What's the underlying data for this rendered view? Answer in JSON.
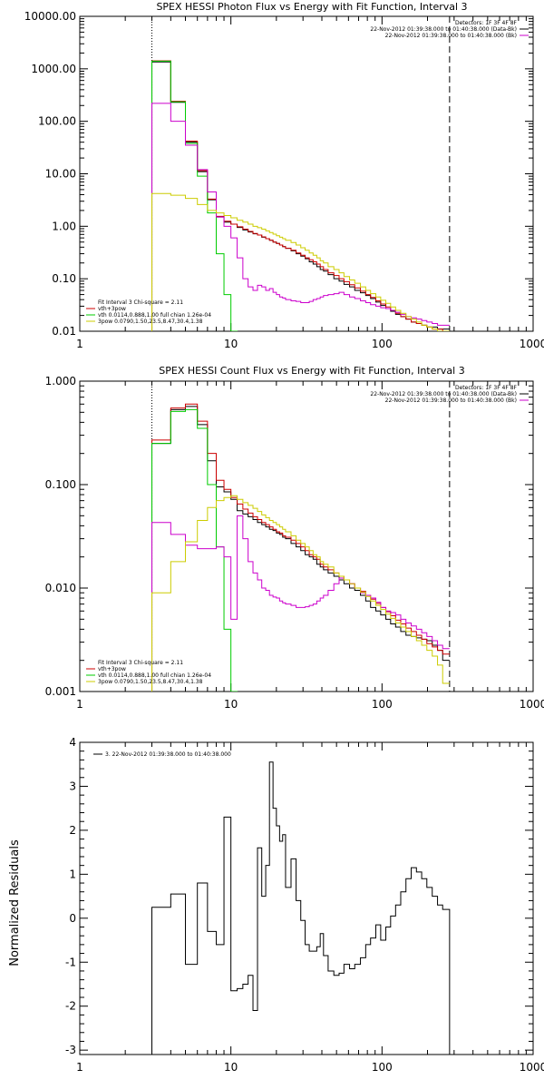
{
  "chart_data": [
    {
      "type": "line",
      "title": "SPEX HESSI Photon Flux vs Energy with Fit Function, Interval 3",
      "xlabel": "",
      "ylabel": "",
      "x_scale": "log",
      "y_scale": "log",
      "xlim": [
        1,
        1000
      ],
      "ylim": [
        0.01,
        10000
      ],
      "x_ticks": [
        "1",
        "10",
        "100",
        "1000"
      ],
      "y_ticks": [
        "10000.00",
        "1000.00",
        "100.00",
        "10.00",
        "1.00",
        "0.10",
        "0.01"
      ],
      "vlines": [
        {
          "x": 3.0,
          "style": "dotted",
          "color": "#000000"
        },
        {
          "x": 280,
          "style": "dashed",
          "color": "#000000"
        }
      ],
      "legend_top_right": [
        "Detectors: 1F 3F 4F 8F",
        "22-Nov-2012 01:39:38.000 to 01:40:38.000 (Data-Bk)",
        "22-Nov-2012 01:39:38.000 to 01:40:38.000 (Bk)"
      ],
      "legend_top_right_colors": [
        "",
        "#000000",
        "#cc00cc"
      ],
      "legend_bottom_left": [
        "Fit Interval 3   Chi-square = 2.11",
        "vth+3pow",
        "vth 0.0114,0.888,1.00  full chian 1.26e-04",
        "3pow 0.0790,1.50,23.5,8.47,30.4,1.38"
      ],
      "legend_bottom_left_colors": [
        "",
        "#cc0000",
        "#00cc00",
        "#cccc00"
      ],
      "edges": [
        3.0,
        4.0,
        5.0,
        6.0,
        7.0,
        8.0,
        9.0,
        10.0,
        11.0,
        12.0,
        13.0,
        14.0,
        15.0,
        16.0,
        17.0,
        18.0,
        19.0,
        20.0,
        21.0,
        22.0,
        23.0,
        25.0,
        27.0,
        29.0,
        31.0,
        33.0,
        35.0,
        37.0,
        39.0,
        41.0,
        44.0,
        48.0,
        52.0,
        56.0,
        61.0,
        66.0,
        72.0,
        78.0,
        84.0,
        91.0,
        98.0,
        106.0,
        114.0,
        123.0,
        133.0,
        144.0,
        156.0,
        169.0,
        183.0,
        198.0,
        215.0,
        233.0,
        252.0,
        280.0
      ],
      "series": [
        {
          "color": "#000000",
          "values": [
            1350,
            230,
            40,
            11,
            3.2,
            1.5,
            1.2,
            1.1,
            0.95,
            0.85,
            0.78,
            0.72,
            0.68,
            0.62,
            0.58,
            0.54,
            0.5,
            0.47,
            0.44,
            0.41,
            0.38,
            0.34,
            0.3,
            0.27,
            0.24,
            0.21,
            0.19,
            0.17,
            0.15,
            0.14,
            0.12,
            0.1,
            0.09,
            0.078,
            0.07,
            0.06,
            0.054,
            0.048,
            0.042,
            0.036,
            0.031,
            0.027,
            0.024,
            0.021,
            0.019,
            0.017,
            0.015,
            0.014,
            0.013,
            0.012,
            0.012,
            0.011,
            0.011
          ]
        },
        {
          "color": "#cc0000",
          "values": [
            1420,
            240,
            42,
            11.5,
            3.3,
            1.55,
            1.25,
            1.1,
            0.98,
            0.88,
            0.8,
            0.73,
            0.68,
            0.63,
            0.58,
            0.54,
            0.5,
            0.47,
            0.44,
            0.41,
            0.38,
            0.35,
            0.31,
            0.28,
            0.25,
            0.23,
            0.21,
            0.19,
            0.17,
            0.15,
            0.13,
            0.115,
            0.1,
            0.088,
            0.077,
            0.067,
            0.058,
            0.05,
            0.044,
            0.038,
            0.033,
            0.029,
            0.025,
            0.022,
            0.019,
            0.017,
            0.015,
            0.014,
            0.013,
            0.012,
            0.011,
            0.011,
            0.01
          ]
        },
        {
          "color": "#00cc00",
          "values": [
            1400,
            235,
            38,
            9,
            1.8,
            0.3,
            0.05,
            0.01
          ]
        },
        {
          "color": "#cc00cc",
          "values": [
            220,
            100,
            35,
            12,
            4.5,
            1.5,
            1.0,
            0.6,
            0.25,
            0.1,
            0.07,
            0.06,
            0.075,
            0.07,
            0.06,
            0.065,
            0.055,
            0.05,
            0.045,
            0.043,
            0.04,
            0.038,
            0.037,
            0.035,
            0.035,
            0.037,
            0.04,
            0.042,
            0.045,
            0.048,
            0.05,
            0.052,
            0.055,
            0.05,
            0.045,
            0.042,
            0.038,
            0.035,
            0.032,
            0.03,
            0.028,
            0.027,
            0.025,
            0.023,
            0.021,
            0.019,
            0.018,
            0.017,
            0.016,
            0.015,
            0.014,
            0.013,
            0.013
          ]
        },
        {
          "color": "#cccc00",
          "values": [
            4.2,
            3.9,
            3.4,
            2.6,
            2.0,
            1.8,
            1.6,
            1.45,
            1.3,
            1.2,
            1.1,
            1.0,
            0.94,
            0.88,
            0.82,
            0.76,
            0.71,
            0.66,
            0.62,
            0.58,
            0.54,
            0.49,
            0.44,
            0.39,
            0.35,
            0.31,
            0.28,
            0.25,
            0.22,
            0.2,
            0.17,
            0.15,
            0.13,
            0.11,
            0.095,
            0.082,
            0.07,
            0.06,
            0.052,
            0.045,
            0.039,
            0.034,
            0.029,
            0.025,
            0.022,
            0.019,
            0.017,
            0.015,
            0.013,
            0.012,
            0.011,
            0.01,
            0.01
          ]
        }
      ]
    },
    {
      "type": "line",
      "title": "SPEX HESSI Count Flux vs Energy with Fit Function, Interval 3",
      "xlabel": "",
      "ylabel": "",
      "x_scale": "log",
      "y_scale": "log",
      "xlim": [
        1,
        1000
      ],
      "ylim": [
        0.001,
        1
      ],
      "x_ticks": [
        "1",
        "10",
        "100",
        "1000"
      ],
      "y_ticks": [
        "1.000",
        "0.100",
        "0.010",
        "0.001"
      ],
      "vlines": [
        {
          "x": 3.0,
          "style": "dotted",
          "color": "#000000"
        },
        {
          "x": 280,
          "style": "dashed",
          "color": "#000000"
        }
      ],
      "legend_top_right": [
        "Detectors: 1F 3F 4F 8F",
        "22-Nov-2012 01:39:38.000 to 01:40:38.000 (Data-Bk)",
        "22-Nov-2012 01:39:38.000 to 01:40:38.000 (Bk)"
      ],
      "legend_top_right_colors": [
        "",
        "#000000",
        "#cc00cc"
      ],
      "legend_bottom_left": [
        "Fit Interval 3   Chi-square = 2.11",
        "vth+3pow",
        "vth 0.0114,0.888,1.00  full chian 1.26e-04",
        "3pow 0.0790,1.50,23.5,8.47,30.4,1.38"
      ],
      "legend_bottom_left_colors": [
        "",
        "#cc0000",
        "#00cc00",
        "#cccc00"
      ],
      "edges": [
        3.0,
        4.0,
        5.0,
        6.0,
        7.0,
        8.0,
        9.0,
        10.0,
        11.0,
        12.0,
        13.0,
        14.0,
        15.0,
        16.0,
        17.0,
        18.0,
        19.0,
        20.0,
        21.0,
        22.0,
        23.0,
        25.0,
        27.0,
        29.0,
        31.0,
        33.0,
        35.0,
        37.0,
        39.0,
        41.0,
        44.0,
        48.0,
        52.0,
        56.0,
        61.0,
        66.0,
        72.0,
        78.0,
        84.0,
        91.0,
        98.0,
        106.0,
        114.0,
        123.0,
        133.0,
        144.0,
        156.0,
        169.0,
        183.0,
        198.0,
        215.0,
        233.0,
        252.0,
        280.0
      ],
      "series": [
        {
          "color": "#000000",
          "values": [
            0.25,
            0.53,
            0.57,
            0.38,
            0.17,
            0.095,
            0.085,
            0.072,
            0.056,
            0.052,
            0.049,
            0.046,
            0.043,
            0.041,
            0.039,
            0.037,
            0.036,
            0.034,
            0.033,
            0.031,
            0.03,
            0.027,
            0.025,
            0.023,
            0.021,
            0.02,
            0.019,
            0.017,
            0.016,
            0.015,
            0.014,
            0.013,
            0.012,
            0.011,
            0.01,
            0.0095,
            0.0085,
            0.0075,
            0.0065,
            0.006,
            0.0055,
            0.005,
            0.0045,
            0.0042,
            0.0038,
            0.0035,
            0.0034,
            0.0033,
            0.0032,
            0.0031,
            0.0028,
            0.0025,
            0.002
          ]
        },
        {
          "color": "#cc0000",
          "values": [
            0.27,
            0.55,
            0.6,
            0.41,
            0.2,
            0.11,
            0.09,
            0.075,
            0.065,
            0.058,
            0.053,
            0.049,
            0.046,
            0.043,
            0.041,
            0.039,
            0.037,
            0.035,
            0.034,
            0.032,
            0.031,
            0.029,
            0.027,
            0.025,
            0.023,
            0.021,
            0.02,
            0.019,
            0.017,
            0.016,
            0.015,
            0.014,
            0.013,
            0.012,
            0.011,
            0.01,
            0.0093,
            0.0085,
            0.0078,
            0.0071,
            0.0065,
            0.0059,
            0.0054,
            0.0049,
            0.0045,
            0.0041,
            0.0038,
            0.0035,
            0.0032,
            0.0029,
            0.0027,
            0.0025,
            0.0023
          ]
        },
        {
          "color": "#00cc00",
          "values": [
            0.25,
            0.51,
            0.53,
            0.35,
            0.1,
            0.025,
            0.004,
            0.001
          ]
        },
        {
          "color": "#cc00cc",
          "values": [
            0.043,
            0.033,
            0.026,
            0.024,
            0.024,
            0.025,
            0.02,
            0.005,
            0.05,
            0.03,
            0.018,
            0.014,
            0.012,
            0.01,
            0.0095,
            0.0085,
            0.0082,
            0.008,
            0.0075,
            0.0072,
            0.007,
            0.0068,
            0.0065,
            0.0065,
            0.0066,
            0.0068,
            0.007,
            0.0075,
            0.008,
            0.0085,
            0.0095,
            0.011,
            0.0125,
            0.012,
            0.011,
            0.01,
            0.009,
            0.0085,
            0.008,
            0.0073,
            0.0065,
            0.006,
            0.0058,
            0.0055,
            0.005,
            0.0046,
            0.0043,
            0.004,
            0.0037,
            0.0034,
            0.0031,
            0.0028,
            0.0026
          ]
        },
        {
          "color": "#cccc00",
          "values": [
            0.009,
            0.018,
            0.028,
            0.045,
            0.06,
            0.07,
            0.075,
            0.078,
            0.072,
            0.067,
            0.063,
            0.059,
            0.055,
            0.051,
            0.048,
            0.045,
            0.043,
            0.041,
            0.039,
            0.037,
            0.035,
            0.032,
            0.029,
            0.027,
            0.025,
            0.023,
            0.021,
            0.02,
            0.018,
            0.017,
            0.016,
            0.014,
            0.013,
            0.012,
            0.011,
            0.01,
            0.0091,
            0.0083,
            0.0075,
            0.0068,
            0.0062,
            0.0056,
            0.0051,
            0.0046,
            0.0042,
            0.0038,
            0.0034,
            0.0031,
            0.0028,
            0.0025,
            0.0022,
            0.0018,
            0.0012
          ]
        }
      ]
    },
    {
      "type": "line",
      "title": "",
      "xlabel": "",
      "ylabel": "Normalized Residuals",
      "x_scale": "log",
      "y_scale": "linear",
      "xlim": [
        1,
        1000
      ],
      "ylim": [
        -3.1,
        4.0
      ],
      "x_ticks": [
        "1",
        "10",
        "100",
        "1000"
      ],
      "y_ticks": [
        "4",
        "3",
        "2",
        "1",
        "0",
        "-1",
        "-2",
        "-3"
      ],
      "legend_top_left": [
        "3. 22-Nov-2012 01:39:38.000 to 01:40:38.000"
      ],
      "legend_top_left_colors": [
        "#000000"
      ],
      "edges": [
        3.0,
        4.0,
        5.0,
        6.0,
        7.0,
        8.0,
        9.0,
        10.0,
        11.0,
        12.0,
        13.0,
        14.0,
        15.0,
        16.0,
        17.0,
        18.0,
        19.0,
        20.0,
        21.0,
        22.0,
        23.0,
        25.0,
        27.0,
        29.0,
        31.0,
        33.0,
        35.0,
        37.0,
        39.0,
        41.0,
        44.0,
        48.0,
        52.0,
        56.0,
        61.0,
        66.0,
        72.0,
        78.0,
        84.0,
        91.0,
        98.0,
        106.0,
        114.0,
        123.0,
        133.0,
        144.0,
        156.0,
        169.0,
        183.0,
        198.0,
        215.0,
        233.0,
        252.0,
        280.0
      ],
      "series": [
        {
          "color": "#000000",
          "drop_to_bottom": true,
          "values": [
            0.25,
            0.55,
            -1.05,
            0.8,
            -0.3,
            -0.6,
            2.3,
            -1.65,
            -1.6,
            -1.5,
            -1.3,
            -2.1,
            1.6,
            0.5,
            1.2,
            3.55,
            2.5,
            2.1,
            1.75,
            1.9,
            0.7,
            1.35,
            0.4,
            -0.05,
            -0.6,
            -0.75,
            -0.75,
            -0.65,
            -0.35,
            -0.85,
            -1.2,
            -1.3,
            -1.25,
            -1.05,
            -1.15,
            -1.05,
            -0.9,
            -0.6,
            -0.45,
            -0.15,
            -0.5,
            -0.2,
            0.05,
            0.3,
            0.6,
            0.9,
            1.15,
            1.05,
            0.9,
            0.7,
            0.5,
            0.3,
            0.2
          ]
        }
      ]
    }
  ]
}
